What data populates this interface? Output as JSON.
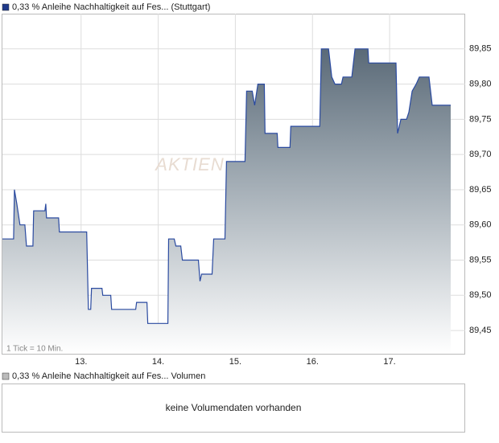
{
  "chart_data": {
    "type": "line",
    "title": "0,33 % Anleihe Nachhaltigkeit auf Fes... (Stuttgart)",
    "note": "1 Tick = 10 Min.",
    "watermark": "AKTIEN",
    "color": "#2a4aa0",
    "grid": true,
    "x": [
      11.98,
      12.125,
      12.135,
      12.167,
      12.208,
      12.271,
      12.292,
      12.375,
      12.385,
      12.531,
      12.542,
      12.552,
      12.708,
      12.719,
      13.073,
      13.094,
      13.125,
      13.135,
      13.271,
      13.281,
      13.385,
      13.396,
      13.708,
      13.719,
      13.854,
      13.865,
      14.125,
      14.135,
      14.208,
      14.229,
      14.292,
      14.313,
      14.521,
      14.542,
      14.563,
      14.698,
      14.719,
      14.865,
      14.885,
      15.125,
      15.146,
      15.219,
      15.25,
      15.292,
      15.375,
      15.385,
      15.542,
      15.552,
      15.708,
      15.719,
      16.094,
      16.115,
      16.208,
      16.25,
      16.292,
      16.375,
      16.396,
      16.51,
      16.552,
      16.719,
      16.729,
      17.083,
      17.104,
      17.146,
      17.219,
      17.25,
      17.292,
      17.344,
      17.385,
      17.51,
      17.552,
      17.792
    ],
    "values": [
      89.58,
      89.58,
      89.65,
      89.63,
      89.6,
      89.6,
      89.57,
      89.57,
      89.62,
      89.62,
      89.63,
      89.61,
      89.61,
      89.59,
      89.59,
      89.48,
      89.48,
      89.51,
      89.51,
      89.5,
      89.5,
      89.48,
      89.48,
      89.49,
      89.49,
      89.46,
      89.46,
      89.58,
      89.58,
      89.57,
      89.57,
      89.55,
      89.55,
      89.52,
      89.53,
      89.53,
      89.58,
      89.58,
      89.69,
      89.69,
      89.79,
      89.79,
      89.77,
      89.8,
      89.8,
      89.73,
      89.73,
      89.71,
      89.71,
      89.74,
      89.74,
      89.85,
      89.85,
      89.81,
      89.8,
      89.8,
      89.81,
      89.81,
      89.85,
      89.85,
      89.83,
      89.83,
      89.73,
      89.75,
      89.75,
      89.76,
      89.79,
      89.8,
      89.81,
      89.81,
      89.77,
      89.77
    ],
    "xlim": [
      11.98,
      17.98
    ],
    "xticks": [
      {
        "value": 13,
        "label": "13."
      },
      {
        "value": 14,
        "label": "14."
      },
      {
        "value": 15,
        "label": "15."
      },
      {
        "value": 16,
        "label": "16."
      },
      {
        "value": 17,
        "label": "17."
      }
    ],
    "ylim": [
      89.417,
      89.9
    ],
    "yticks": [
      {
        "value": 89.45,
        "label": "89,45"
      },
      {
        "value": 89.5,
        "label": "89,50"
      },
      {
        "value": 89.55,
        "label": "89,55"
      },
      {
        "value": 89.6,
        "label": "89,60"
      },
      {
        "value": 89.65,
        "label": "89,65"
      },
      {
        "value": 89.7,
        "label": "89,70"
      },
      {
        "value": 89.75,
        "label": "89,75"
      },
      {
        "value": 89.8,
        "label": "89,80"
      },
      {
        "value": 89.85,
        "label": "89,85"
      }
    ]
  },
  "volume_panel": {
    "title": "0,33 % Anleihe Nachhaltigkeit auf Fes... Volumen",
    "message": "keine Volumendaten vorhanden"
  }
}
